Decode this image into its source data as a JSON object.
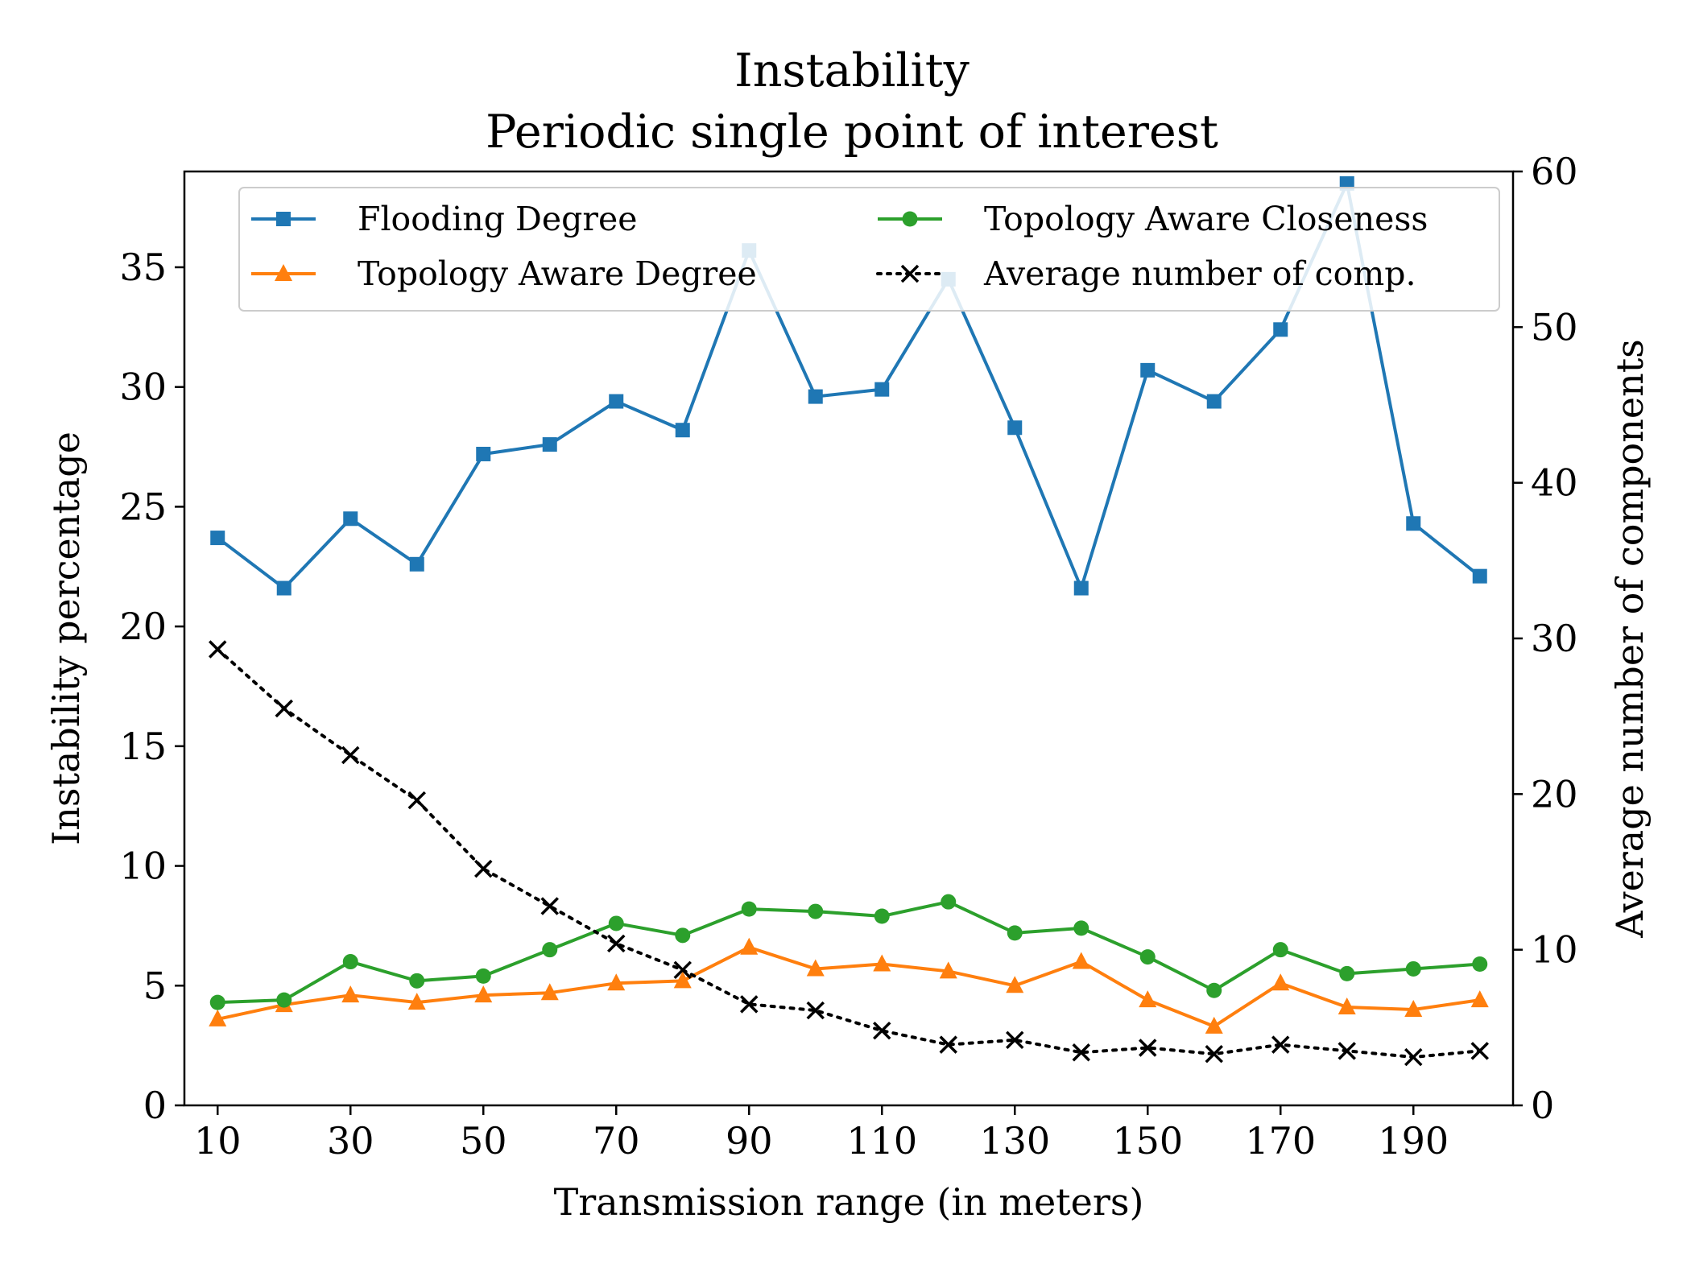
{
  "chart_data": {
    "type": "line",
    "title": "Instability",
    "subtitle": "Periodic single point of interest",
    "xlabel": "Transmission range (in meters)",
    "ylabel": "Instability percentage",
    "y2label": "Average number of components",
    "x": [
      10,
      20,
      30,
      40,
      50,
      60,
      70,
      80,
      90,
      100,
      110,
      120,
      130,
      140,
      150,
      160,
      170,
      180,
      190,
      200
    ],
    "xlim": [
      5,
      205
    ],
    "ylim": [
      0,
      39
    ],
    "y2lim": [
      0,
      60
    ],
    "xticks": [
      10,
      30,
      50,
      70,
      90,
      110,
      130,
      150,
      170,
      190
    ],
    "yticks": [
      0,
      5,
      10,
      15,
      20,
      25,
      30,
      35
    ],
    "y2ticks": [
      0,
      10,
      20,
      30,
      40,
      50,
      60
    ],
    "legend_position": "top",
    "series": [
      {
        "name": "Flooding Degree",
        "axis": "left",
        "color": "#1f77b4",
        "marker": "square",
        "linestyle": "solid",
        "values": [
          23.7,
          21.6,
          24.5,
          22.6,
          27.2,
          27.6,
          29.4,
          28.2,
          35.7,
          29.6,
          29.9,
          34.5,
          28.3,
          21.6,
          30.7,
          29.4,
          32.4,
          38.5,
          24.3,
          22.1
        ]
      },
      {
        "name": "Topology Aware Degree",
        "axis": "left",
        "color": "#ff7f0e",
        "marker": "triangle",
        "linestyle": "solid",
        "values": [
          3.6,
          4.2,
          4.6,
          4.3,
          4.6,
          4.7,
          5.1,
          5.2,
          6.6,
          5.7,
          5.9,
          5.6,
          5.0,
          6.0,
          4.4,
          3.3,
          5.1,
          4.1,
          4.0,
          4.4
        ]
      },
      {
        "name": "Topology Aware Closeness",
        "axis": "left",
        "color": "#2ca02c",
        "marker": "circle",
        "linestyle": "solid",
        "values": [
          4.3,
          4.4,
          6.0,
          5.2,
          5.4,
          6.5,
          7.6,
          7.1,
          8.2,
          8.1,
          7.9,
          8.5,
          7.2,
          7.4,
          6.2,
          4.8,
          6.5,
          5.5,
          5.7,
          5.9
        ]
      },
      {
        "name": "Average number of comp.",
        "axis": "right",
        "color": "#000000",
        "marker": "x",
        "linestyle": "dotted",
        "values": [
          29.3,
          25.5,
          22.5,
          19.6,
          15.2,
          12.8,
          10.4,
          8.7,
          6.5,
          6.1,
          4.8,
          3.9,
          4.2,
          3.4,
          3.7,
          3.3,
          3.9,
          3.5,
          3.1,
          3.5
        ]
      }
    ]
  }
}
